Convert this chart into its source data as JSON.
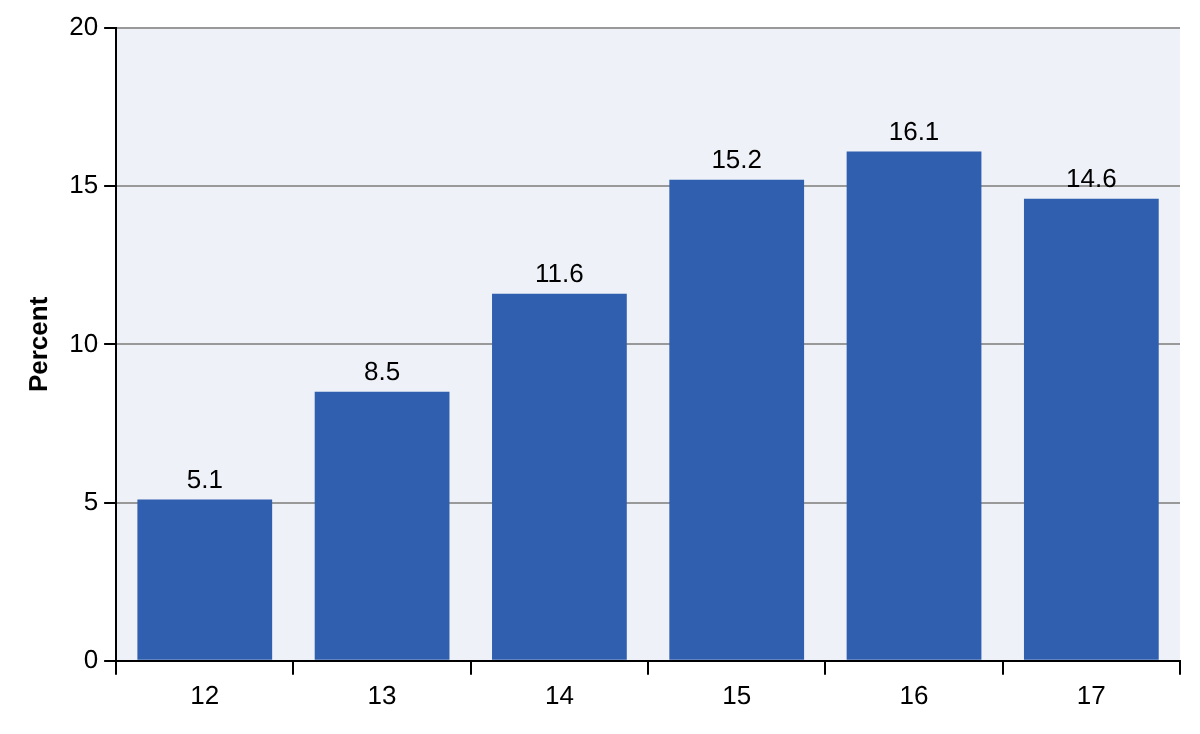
{
  "chart_data": {
    "type": "bar",
    "ylabel": "Percent",
    "categories": [
      "12",
      "13",
      "14",
      "15",
      "16",
      "17"
    ],
    "values": [
      5.1,
      8.5,
      11.6,
      15.2,
      16.1,
      14.6
    ],
    "color": "#2f5fae",
    "ylim": [
      0,
      20
    ],
    "yticks": [
      0,
      5,
      10,
      15,
      20
    ],
    "grid": "y",
    "data_labels": true
  }
}
